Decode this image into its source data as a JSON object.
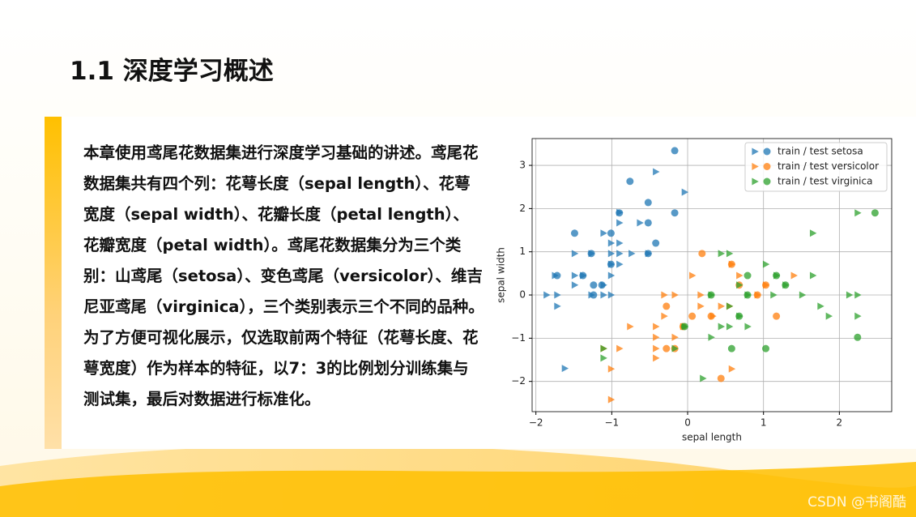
{
  "slide": {
    "title": "1.1 深度学习概述",
    "paragraph": "本章使用鸢尾花数据集进行深度学习基础的讲述。鸢尾花数据集共有四个列：花萼长度（sepal length）、花萼宽度（sepal width）、花瓣长度（petal length）、花瓣宽度（petal width）。鸢尾花数据集分为三个类别：山鸢尾（setosa）、变色鸢尾（versicolor）、维吉尼亚鸢尾（virginica），三个类别表示三个不同的品种。为了方便可视化展示，仅选取前两个特征（花萼长度、花萼宽度）作为样本的特征，以7：3的比例划分训练集与测试集，最后对数据进行标准化。",
    "watermark": "CSDN @书阁酷"
  },
  "chart_data": {
    "type": "scatter",
    "x_label": "sepal length",
    "y_label": "sepal width",
    "xlim": [
      -2.05,
      2.69
    ],
    "ylim": [
      -2.7,
      3.62
    ],
    "xticks": [
      {
        "value": -2,
        "label": "−2"
      },
      {
        "value": -1,
        "label": "−1"
      },
      0,
      1,
      2
    ],
    "yticks": [
      {
        "value": -2,
        "label": "−2"
      },
      {
        "value": -1,
        "label": "−1"
      },
      0,
      1,
      2,
      3
    ],
    "grid": true,
    "legend": "upper right",
    "series": [
      {
        "name": "train / test setosa",
        "color": "#1f77b4",
        "x": [
          -0.42,
          -0.04,
          -0.9,
          -0.63,
          -0.9,
          -1.11,
          -1.01,
          -0.9,
          -1.49,
          -1.27,
          -1.01,
          -0.9,
          -0.74,
          -0.52,
          -1.01,
          -0.9,
          -1.75,
          -1.49,
          -1.38,
          -1.01,
          -1.49,
          -1.11,
          -1.86,
          -1.72,
          -1.27,
          -1.11,
          -1.01,
          -1.72,
          -1.62
        ],
        "values": [
          2.85,
          2.38,
          1.91,
          1.67,
          1.67,
          1.43,
          1.2,
          1.2,
          0.96,
          0.96,
          0.96,
          0.96,
          0.96,
          0.96,
          0.71,
          0.71,
          0.45,
          0.45,
          0.45,
          0.45,
          0.23,
          0.23,
          0,
          0,
          0,
          0,
          0,
          -0.26,
          -1.7
        ],
        "test_x": [
          -0.17,
          -0.76,
          -0.52,
          -0.17,
          -0.9,
          -0.52,
          -1.49,
          -1.01,
          -0.42,
          -0.52,
          -1.27,
          -1.72,
          -1.38,
          -1.24,
          -1.13,
          -1.24,
          -1.01
        ],
        "test_values": [
          3.34,
          2.63,
          2.14,
          1.9,
          1.9,
          1.67,
          1.43,
          1.43,
          1.2,
          0.96,
          0.96,
          0.45,
          0.45,
          0.23,
          0.23,
          0,
          0.71
        ]
      },
      {
        "name": "train / test versicolor",
        "color": "#ff7f0e",
        "x": [
          0.06,
          0.58,
          0.68,
          1.4,
          -0.31,
          -0.17,
          0.17,
          0.44,
          0.55,
          0.17,
          -0.31,
          0.33,
          -0.42,
          -0.06,
          -0.76,
          -0.42,
          -0.17,
          -1.11,
          -0.42,
          -0.9,
          -0.42,
          -1.01,
          0.58,
          -1.01,
          0.92,
          1.03
        ],
        "values": [
          0.45,
          0.71,
          0.45,
          0.45,
          0,
          0,
          0,
          -0.26,
          -0.26,
          -0.26,
          -0.49,
          -0.49,
          -0.73,
          -0.73,
          -0.73,
          -0.98,
          -0.98,
          -1.24,
          -1.24,
          -1.24,
          -1.46,
          -1.71,
          -1.71,
          -2.42,
          0,
          0.23
        ],
        "test_x": [
          0.19,
          0.58,
          0.68,
          -0.28,
          0.06,
          0.31,
          1.03,
          1.17,
          -0.17,
          -0.28,
          0.44,
          -0.06,
          0.92
        ],
        "test_values": [
          0.96,
          0.71,
          0.23,
          -0.26,
          -0.49,
          -0.49,
          0.23,
          -0.49,
          -1.24,
          -1.24,
          -1.93,
          -0.73,
          0
        ]
      },
      {
        "name": "train / test virginica",
        "color": "#2ca02c",
        "x": [
          2.24,
          1.65,
          0.44,
          0.55,
          1.03,
          1.17,
          1.65,
          1.29,
          0.68,
          1.51,
          2.13,
          2.24,
          0.31,
          0.79,
          1.13,
          1.75,
          1.86,
          2.24,
          0.55,
          0.68,
          0.44,
          0.55,
          0.79,
          -0.04,
          0.31,
          -0.17,
          -1.11,
          -1.11,
          0.2
        ],
        "values": [
          1.9,
          1.43,
          0.96,
          0.96,
          0.71,
          0.45,
          0.45,
          0.23,
          0.23,
          0,
          0,
          0,
          0,
          0,
          0,
          -0.26,
          -0.49,
          -0.49,
          -0.26,
          -0.49,
          -0.73,
          -0.73,
          -0.73,
          -0.73,
          -0.98,
          -1.24,
          -1.24,
          -1.46,
          -1.93
        ],
        "test_x": [
          2.47,
          0.79,
          1.17,
          1.29,
          2.24,
          1.03,
          0.58,
          0.68,
          0.79,
          0.31,
          -0.04
        ],
        "test_values": [
          1.9,
          0.45,
          0.45,
          0.23,
          -0.98,
          -1.24,
          -1.24,
          -0.49,
          0,
          0,
          -0.73
        ]
      }
    ]
  }
}
